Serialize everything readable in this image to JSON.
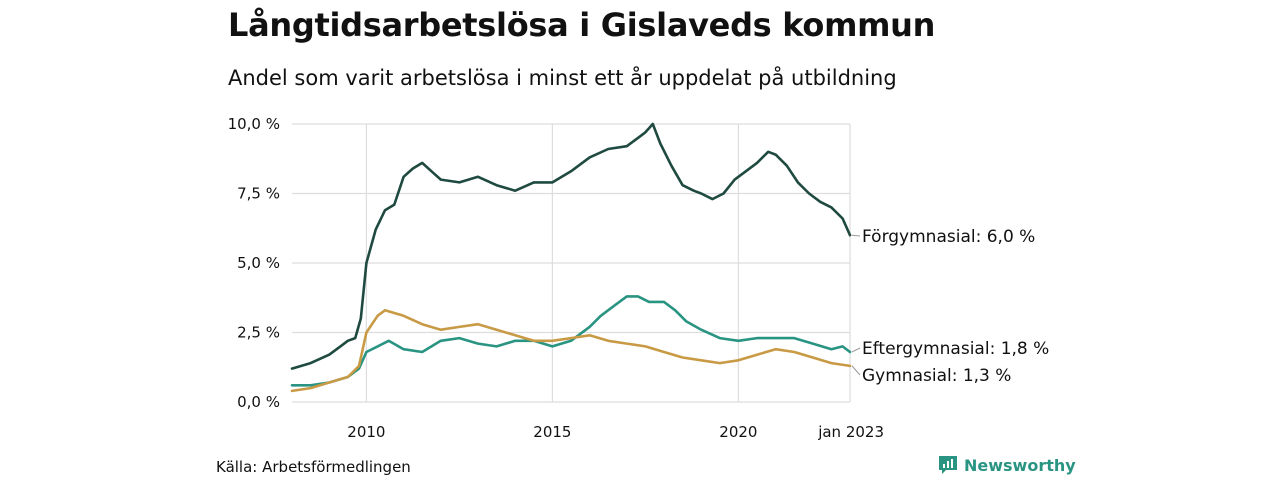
{
  "title": "Långtidsarbetslösa i Gislaveds kommun",
  "subtitle": "Andel som varit arbetslösa i minst ett år uppdelat på utbildning",
  "source": "Källa: Arbetsförmedlingen",
  "brand": {
    "name": "Newsworthy",
    "icon": "newsworthy-chart-icon",
    "color": "#2a9483"
  },
  "chart_data": {
    "type": "line",
    "title": "Långtidsarbetslösa i Gislaveds kommun",
    "subtitle": "Andel som varit arbetslösa i minst ett år uppdelat på utbildning",
    "xlabel": "",
    "ylabel": "",
    "xlim": [
      2008.0,
      2023.0
    ],
    "ylim": [
      0,
      10
    ],
    "grid": true,
    "x_ticks": [
      {
        "value": 2010,
        "label": "2010"
      },
      {
        "value": 2015,
        "label": "2015"
      },
      {
        "value": 2020,
        "label": "2020"
      },
      {
        "value": 2023.0,
        "label": "jan 2023"
      }
    ],
    "y_ticks": [
      {
        "value": 0,
        "label": "0,0 %"
      },
      {
        "value": 2.5,
        "label": "2,5 %"
      },
      {
        "value": 5,
        "label": "5,0 %"
      },
      {
        "value": 7.5,
        "label": "7,5 %"
      },
      {
        "value": 10,
        "label": "10,0 %"
      }
    ],
    "series": [
      {
        "name": "Förgymnasial",
        "label": "Förgymnasial: 6,0 %",
        "color": "#1f4a40",
        "x": [
          2008.0,
          2008.5,
          2009.0,
          2009.3,
          2009.5,
          2009.7,
          2009.85,
          2010.0,
          2010.25,
          2010.5,
          2010.75,
          2011.0,
          2011.25,
          2011.5,
          2011.75,
          2012.0,
          2012.5,
          2013.0,
          2013.5,
          2014.0,
          2014.5,
          2015.0,
          2015.5,
          2016.0,
          2016.5,
          2017.0,
          2017.3,
          2017.5,
          2017.7,
          2017.9,
          2018.2,
          2018.5,
          2018.8,
          2019.0,
          2019.3,
          2019.6,
          2019.9,
          2020.2,
          2020.5,
          2020.8,
          2021.0,
          2021.3,
          2021.6,
          2021.9,
          2022.2,
          2022.5,
          2022.8,
          2023.0
        ],
        "y": [
          1.2,
          1.4,
          1.7,
          2.0,
          2.2,
          2.3,
          3.0,
          5.0,
          6.2,
          6.9,
          7.1,
          8.1,
          8.4,
          8.6,
          8.3,
          8.0,
          7.9,
          8.1,
          7.8,
          7.6,
          7.9,
          7.9,
          8.3,
          8.8,
          9.1,
          9.2,
          9.5,
          9.7,
          10.0,
          9.3,
          8.5,
          7.8,
          7.6,
          7.5,
          7.3,
          7.5,
          8.0,
          8.3,
          8.6,
          9.0,
          8.9,
          8.5,
          7.9,
          7.5,
          7.2,
          7.0,
          6.6,
          6.0
        ]
      },
      {
        "name": "Eftergymnasial",
        "label": "Eftergymnasial: 1,8 %",
        "color": "#2a9483",
        "x": [
          2008.0,
          2008.5,
          2009.0,
          2009.5,
          2009.8,
          2010.0,
          2010.3,
          2010.6,
          2011.0,
          2011.5,
          2012.0,
          2012.5,
          2013.0,
          2013.5,
          2014.0,
          2014.5,
          2015.0,
          2015.5,
          2016.0,
          2016.3,
          2016.7,
          2017.0,
          2017.3,
          2017.6,
          2018.0,
          2018.3,
          2018.6,
          2019.0,
          2019.5,
          2020.0,
          2020.5,
          2021.0,
          2021.5,
          2022.0,
          2022.5,
          2022.8,
          2023.0
        ],
        "y": [
          0.6,
          0.6,
          0.7,
          0.9,
          1.2,
          1.8,
          2.0,
          2.2,
          1.9,
          1.8,
          2.2,
          2.3,
          2.1,
          2.0,
          2.2,
          2.2,
          2.0,
          2.2,
          2.7,
          3.1,
          3.5,
          3.8,
          3.8,
          3.6,
          3.6,
          3.3,
          2.9,
          2.6,
          2.3,
          2.2,
          2.3,
          2.3,
          2.3,
          2.1,
          1.9,
          2.0,
          1.8
        ]
      },
      {
        "name": "Gymnasial",
        "label": "Gymnasial: 1,3 %",
        "color": "#c99a45",
        "x": [
          2008.0,
          2008.5,
          2009.0,
          2009.5,
          2009.8,
          2010.0,
          2010.3,
          2010.5,
          2011.0,
          2011.5,
          2012.0,
          2012.5,
          2013.0,
          2013.5,
          2014.0,
          2014.5,
          2015.0,
          2015.5,
          2016.0,
          2016.5,
          2017.0,
          2017.5,
          2018.0,
          2018.5,
          2019.0,
          2019.5,
          2020.0,
          2020.5,
          2021.0,
          2021.5,
          2022.0,
          2022.5,
          2023.0
        ],
        "y": [
          0.4,
          0.5,
          0.7,
          0.9,
          1.3,
          2.5,
          3.1,
          3.3,
          3.1,
          2.8,
          2.6,
          2.7,
          2.8,
          2.6,
          2.4,
          2.2,
          2.2,
          2.3,
          2.4,
          2.2,
          2.1,
          2.0,
          1.8,
          1.6,
          1.5,
          1.4,
          1.5,
          1.7,
          1.9,
          1.8,
          1.6,
          1.4,
          1.3
        ]
      }
    ]
  }
}
